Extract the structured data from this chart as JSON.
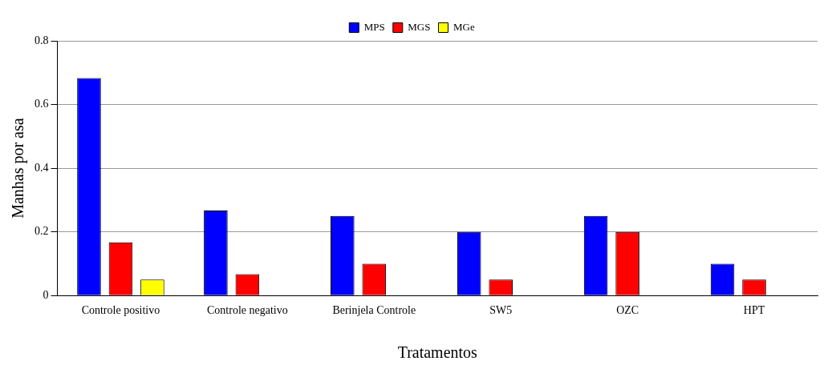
{
  "chart_data": {
    "type": "bar",
    "xlabel": "Tratamentos",
    "ylabel": "Manhas por asa",
    "categories": [
      "Controle positivo",
      "Controle negativo",
      "Berinjela Controle",
      "SW5",
      "OZC",
      "HPT"
    ],
    "series": [
      {
        "name": "MPS",
        "color": "#0000ff",
        "values": [
          0.683,
          0.267,
          0.25,
          0.2,
          0.25,
          0.1
        ]
      },
      {
        "name": "MGS",
        "color": "#ff0000",
        "values": [
          0.167,
          0.067,
          0.1,
          0.05,
          0.2,
          0.05
        ]
      },
      {
        "name": "MGe",
        "color": "#ffff00",
        "values": [
          0.05,
          0,
          0,
          0,
          0,
          0
        ]
      }
    ],
    "ylim": [
      0,
      0.8
    ],
    "yticks": [
      0,
      0.2,
      0.4,
      0.6,
      0.8
    ],
    "grid": "y",
    "legend": "top"
  }
}
